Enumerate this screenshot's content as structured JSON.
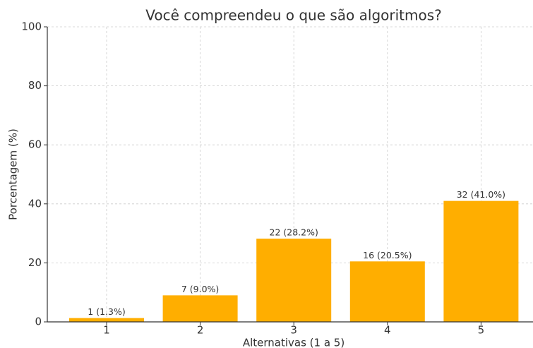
{
  "chart_data": {
    "type": "bar",
    "title": "Você compreendeu o que são algoritmos?",
    "x_label": "Alternativas (1 a 5)",
    "y_label": "Porcentagem (%)",
    "categories": [
      "1",
      "2",
      "3",
      "4",
      "5"
    ],
    "values": [
      1.3,
      9.0,
      28.2,
      20.5,
      41.0
    ],
    "value_labels": [
      "1 (1.3%)",
      "7 (9.0%)",
      "22 (28.2%)",
      "16 (20.5%)",
      "32 (41.0%)"
    ],
    "color": "#ffae00",
    "ylim": [
      0,
      100
    ],
    "yticks": [
      0,
      20,
      40,
      60,
      80,
      100
    ],
    "grid": true
  }
}
